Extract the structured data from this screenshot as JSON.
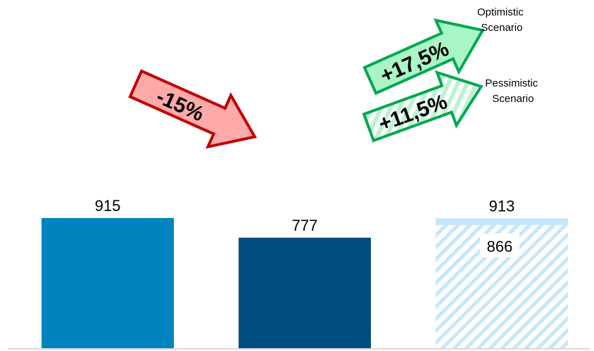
{
  "chart_data": {
    "type": "bar",
    "title": "",
    "xlabel": "",
    "ylabel": "",
    "ylim": [
      0,
      1200
    ],
    "bars": [
      {
        "value": 915,
        "label": "915",
        "color": "#0084bf",
        "style": "solid"
      },
      {
        "value": 777,
        "label": "777",
        "color": "#004f80",
        "style": "solid"
      },
      {
        "value": 913,
        "label": "913",
        "inner_value": 866,
        "inner_label": "866",
        "color": "#c6e6fb",
        "style": "hatched"
      }
    ],
    "annotations": [
      {
        "id": "decline",
        "text": "-15%",
        "fill": "#ffaaaa",
        "stroke": "#c00000"
      },
      {
        "id": "optimistic",
        "text": "+17,5%",
        "fill": "#aaf5c5",
        "stroke": "#00a850",
        "scenario": "Optimistic Scenario",
        "scenario_lines": [
          "Optimistic",
          "Scenario"
        ]
      },
      {
        "id": "pessimistic",
        "text": "+11,5%",
        "fill": "#bdf2d0",
        "stroke": "#00a850",
        "hatched": true,
        "scenario": "Pessimistic Scenario",
        "scenario_lines": [
          "Pessimistic",
          "Scenario"
        ]
      }
    ]
  }
}
